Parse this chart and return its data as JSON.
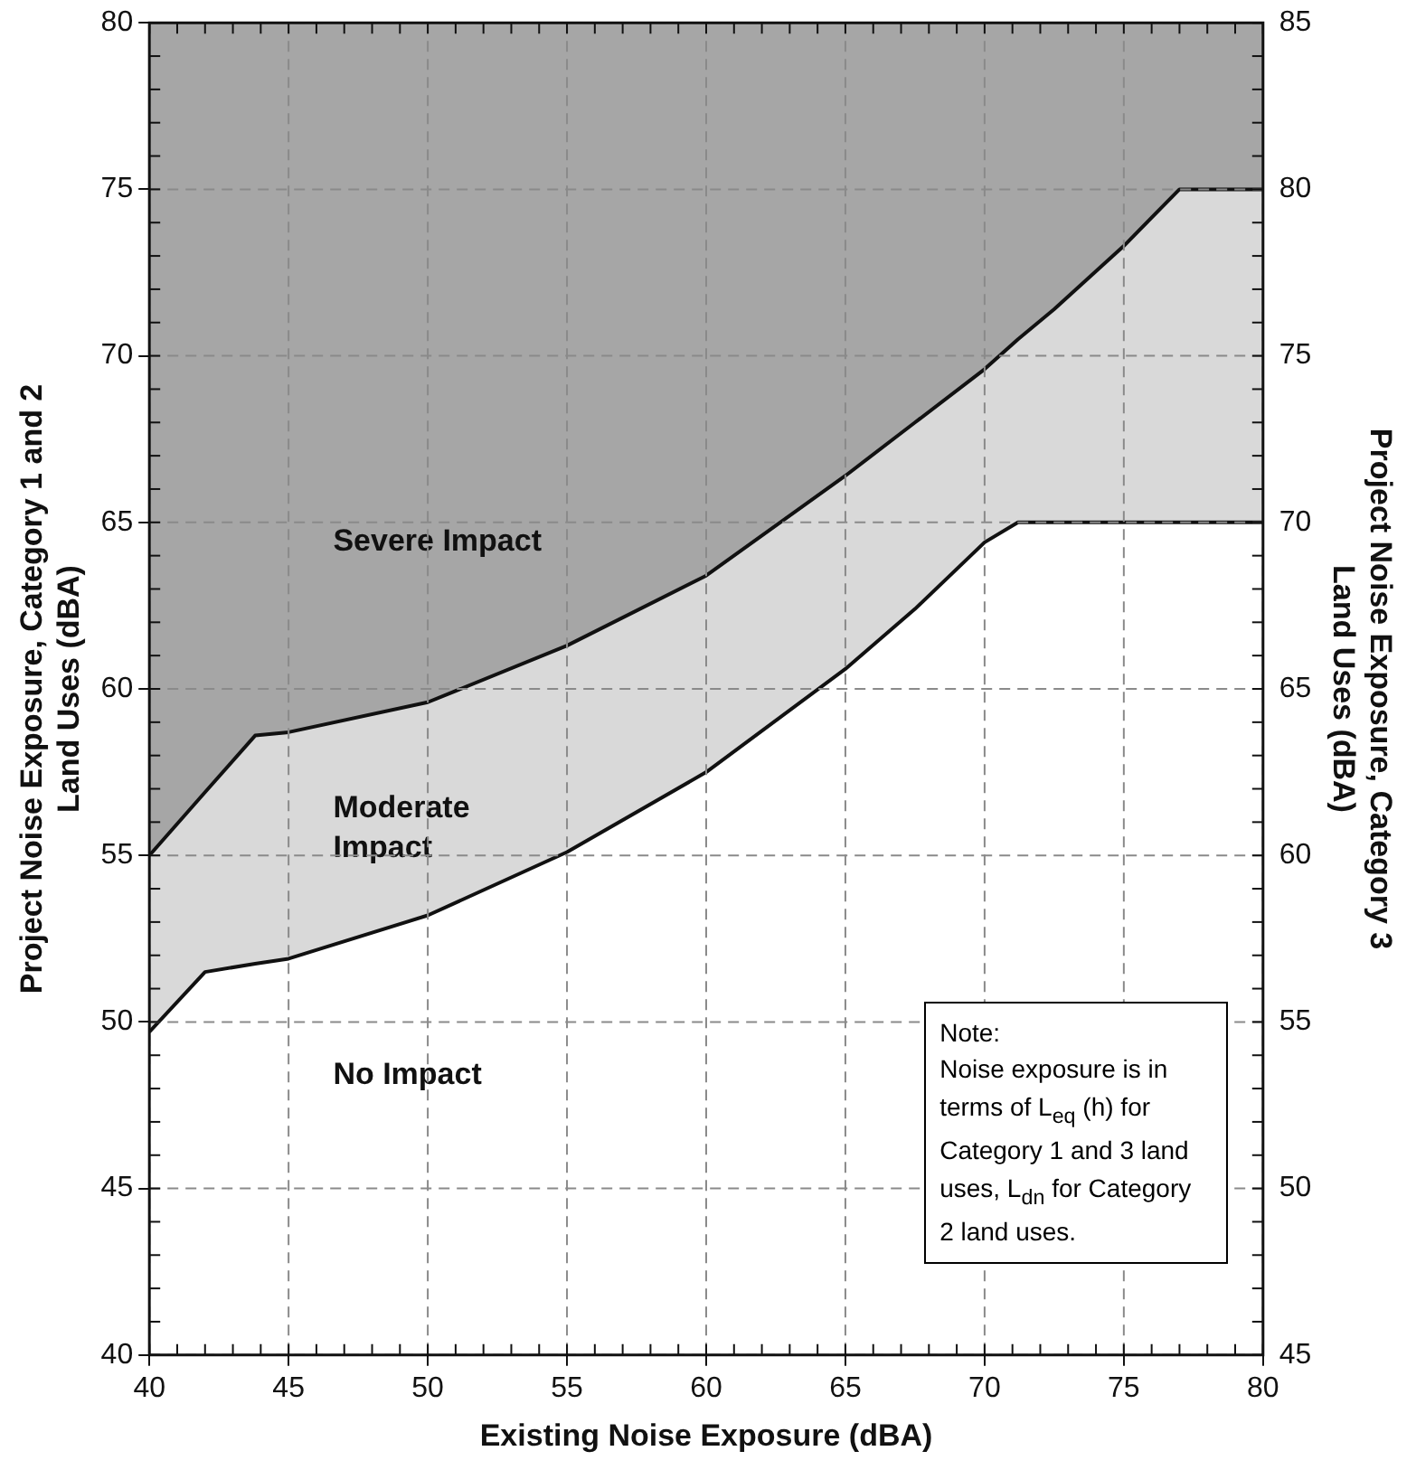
{
  "chart_data": {
    "type": "area",
    "xlabel": "Existing Noise Exposure (dBA)",
    "ylabel": "Project Noise Exposure, Category 1 and 2\nLand Uses (dBA)",
    "y2label": "Project Noise Exposure, Category 3\nLand Uses (dBA)",
    "x": [
      40,
      42,
      43.8,
      45,
      50,
      55,
      60,
      65,
      67.5,
      70,
      71.2,
      72.5,
      75,
      77,
      80
    ],
    "series": [
      {
        "name": "No Impact",
        "color": "#ffffff",
        "values": [
          49.7,
          51.5,
          51.75,
          51.9,
          53.2,
          55.1,
          57.5,
          60.6,
          62.4,
          64.4,
          65,
          65,
          65,
          65,
          65
        ]
      },
      {
        "name": "Moderate Impact",
        "color": "#d9d9d9",
        "values": [
          55,
          56.9,
          58.6,
          58.7,
          59.6,
          61.3,
          63.4,
          66.4,
          68,
          69.6,
          70.5,
          71.4,
          73.3,
          75,
          75
        ]
      }
    ],
    "bands": [
      {
        "axis": "y",
        "from": 40,
        "to": 80,
        "label": "Severe Impact",
        "color": "#a6a6a6"
      }
    ],
    "xlim": [
      40,
      80
    ],
    "xticks": [
      40,
      45,
      50,
      55,
      60,
      65,
      70,
      75,
      80
    ],
    "ylim": [
      40,
      80
    ],
    "yticks": [
      40,
      45,
      50,
      55,
      60,
      65,
      70,
      75,
      80
    ],
    "y2lim": [
      45,
      85
    ],
    "y2ticks": [
      45,
      50,
      55,
      60,
      65,
      70,
      75,
      80,
      85
    ],
    "grid": true,
    "legend": false,
    "line_style": "solid",
    "marker": "none",
    "annotations": [
      "Note:\nNoise exposure is in terms of L$_{eq}$ (h) for Category 1 and 3 land uses, L$_{dn}$ for Category 2 land uses."
    ]
  }
}
